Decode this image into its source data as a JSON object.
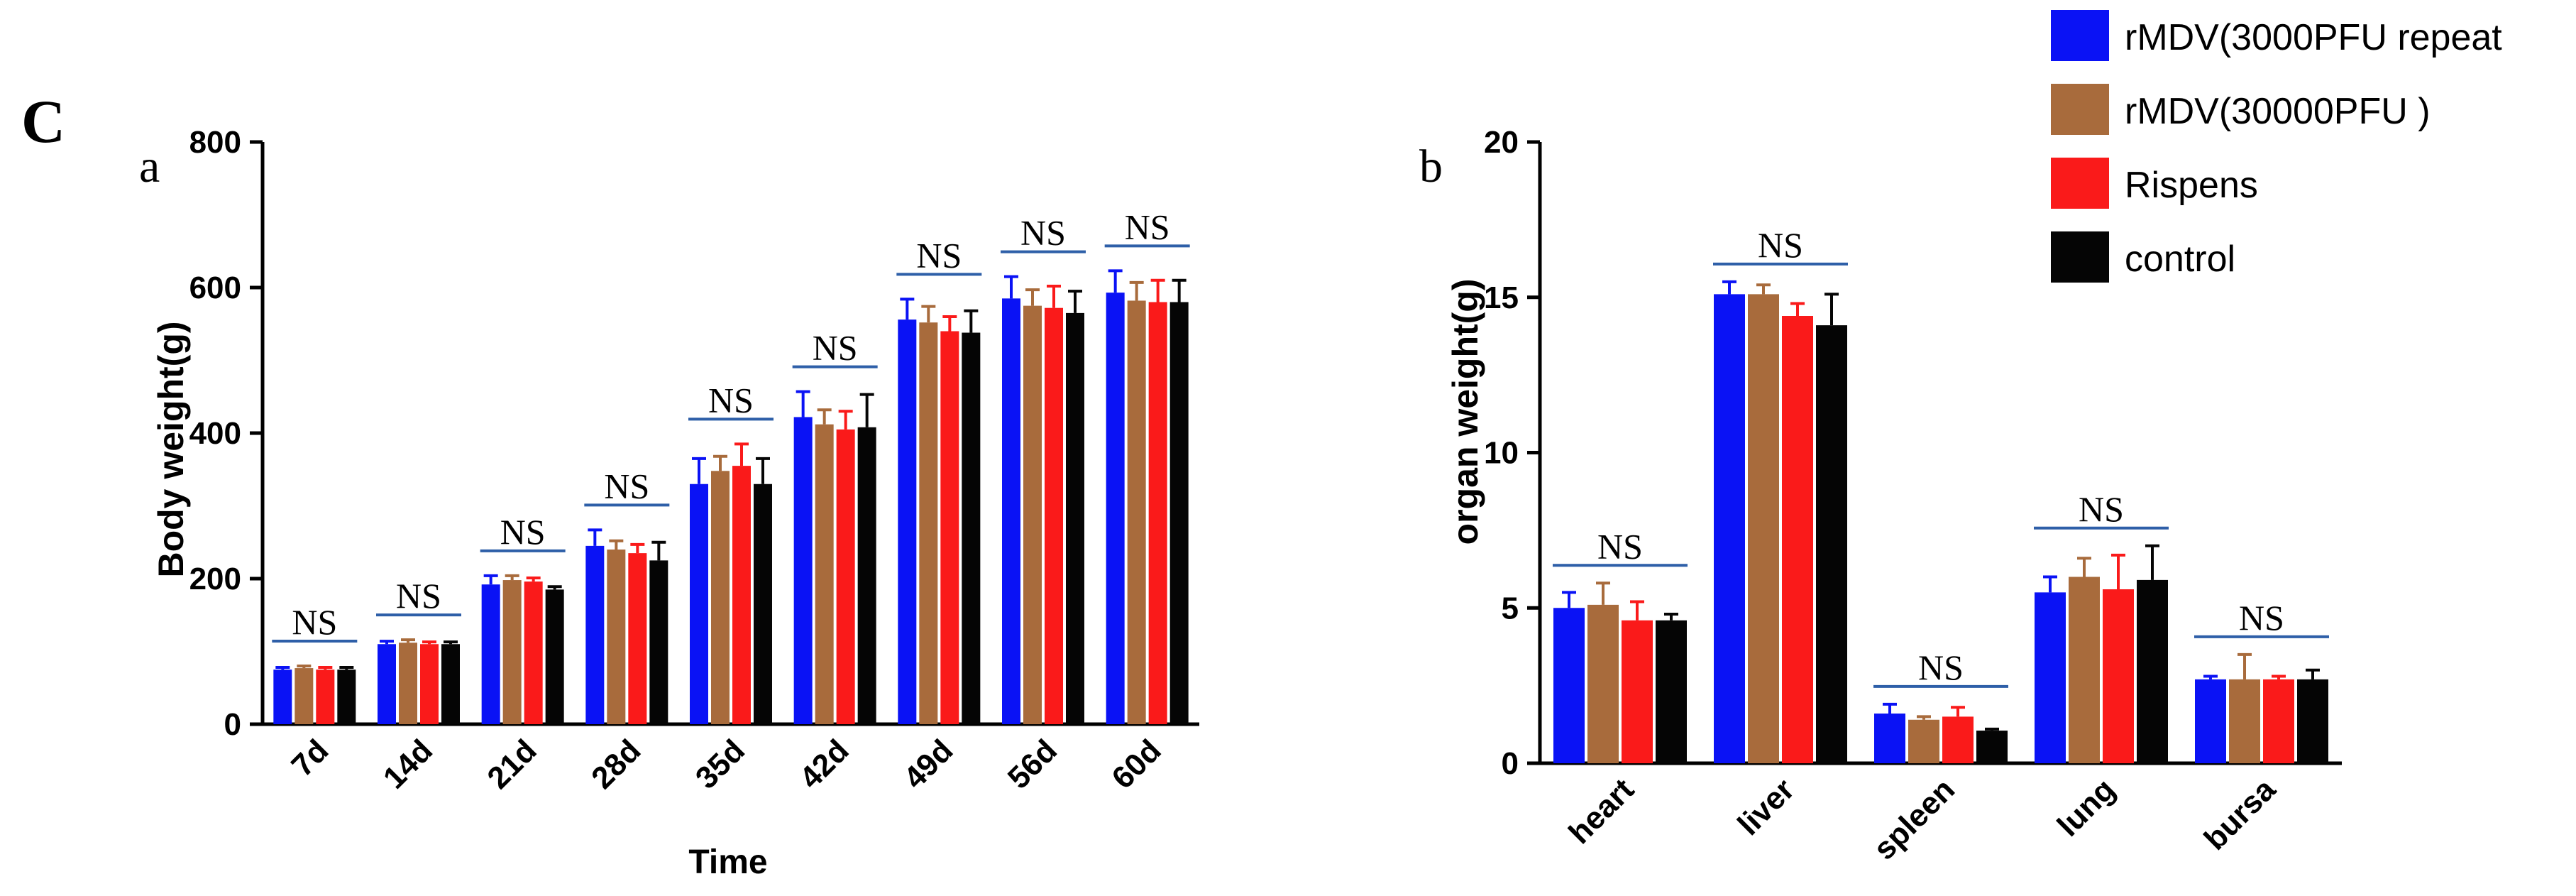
{
  "panel_label": "C",
  "colors": {
    "rMDV(3000PFU repeat": "#0a12f5",
    "rMDV(30000PFU )": "#a86b3c",
    "Rispens": "#fa1a1a",
    "control": "#050505",
    "ns_line": "#2e5fa8"
  },
  "legend": {
    "items": [
      {
        "label": "rMDV(3000PFU repeat",
        "color": "#0a12f5"
      },
      {
        "label": "rMDV(30000PFU )",
        "color": "#a86b3c"
      },
      {
        "label": "Rispens",
        "color": "#fa1a1a"
      },
      {
        "label": "control",
        "color": "#050505"
      }
    ]
  },
  "chart_data": [
    {
      "panel": "a",
      "type": "bar",
      "title": "",
      "xlabel": "Time",
      "ylabel": "Body weight(g)",
      "ylim": [
        0,
        800
      ],
      "yticks": [
        0,
        200,
        400,
        600,
        800
      ],
      "categories": [
        "7d",
        "14d",
        "21d",
        "28d",
        "35d",
        "42d",
        "49d",
        "56d",
        "60d"
      ],
      "series": [
        {
          "name": "rMDV(3000PFU repeat",
          "values": [
            75,
            110,
            192,
            245,
            330,
            422,
            556,
            585,
            593
          ],
          "errors": [
            3,
            4,
            12,
            22,
            35,
            35,
            28,
            30,
            30
          ]
        },
        {
          "name": "rMDV(30000PFU )",
          "values": [
            77,
            112,
            198,
            240,
            348,
            412,
            552,
            575,
            582
          ],
          "errors": [
            3,
            4,
            6,
            12,
            20,
            20,
            22,
            22,
            25
          ]
        },
        {
          "name": "Rispens",
          "values": [
            75,
            110,
            196,
            235,
            355,
            405,
            540,
            572,
            580
          ],
          "errors": [
            3,
            3,
            5,
            12,
            30,
            25,
            20,
            30,
            30
          ]
        },
        {
          "name": "control",
          "values": [
            75,
            110,
            185,
            225,
            330,
            408,
            538,
            565,
            580
          ],
          "errors": [
            3,
            3,
            4,
            25,
            35,
            45,
            30,
            30,
            30
          ]
        }
      ],
      "annotations": [
        "NS",
        "NS",
        "NS",
        "NS",
        "NS",
        "NS",
        "NS",
        "NS",
        "NS"
      ]
    },
    {
      "panel": "b",
      "type": "bar",
      "title": "",
      "xlabel": "",
      "ylabel": "organ weight(g)",
      "ylim": [
        0,
        20
      ],
      "yticks": [
        0,
        5,
        10,
        15,
        20
      ],
      "categories": [
        "heart",
        "liver",
        "spleen",
        "lung",
        "bursa"
      ],
      "series": [
        {
          "name": "rMDV(3000PFU repeat",
          "values": [
            5.0,
            15.1,
            1.6,
            5.5,
            2.7
          ],
          "errors": [
            0.5,
            0.4,
            0.3,
            0.5,
            0.1
          ]
        },
        {
          "name": "rMDV(30000PFU )",
          "values": [
            5.1,
            15.1,
            1.4,
            6.0,
            2.7
          ],
          "errors": [
            0.7,
            0.3,
            0.1,
            0.6,
            0.8
          ]
        },
        {
          "name": "Rispens",
          "values": [
            4.6,
            14.4,
            1.5,
            5.6,
            2.7
          ],
          "errors": [
            0.6,
            0.4,
            0.3,
            1.1,
            0.1
          ]
        },
        {
          "name": "control",
          "values": [
            4.6,
            14.1,
            1.05,
            5.9,
            2.7
          ],
          "errors": [
            0.2,
            1.0,
            0.05,
            1.1,
            0.3
          ]
        }
      ],
      "annotations": [
        "NS",
        "NS",
        "NS",
        "NS",
        "NS"
      ]
    }
  ]
}
